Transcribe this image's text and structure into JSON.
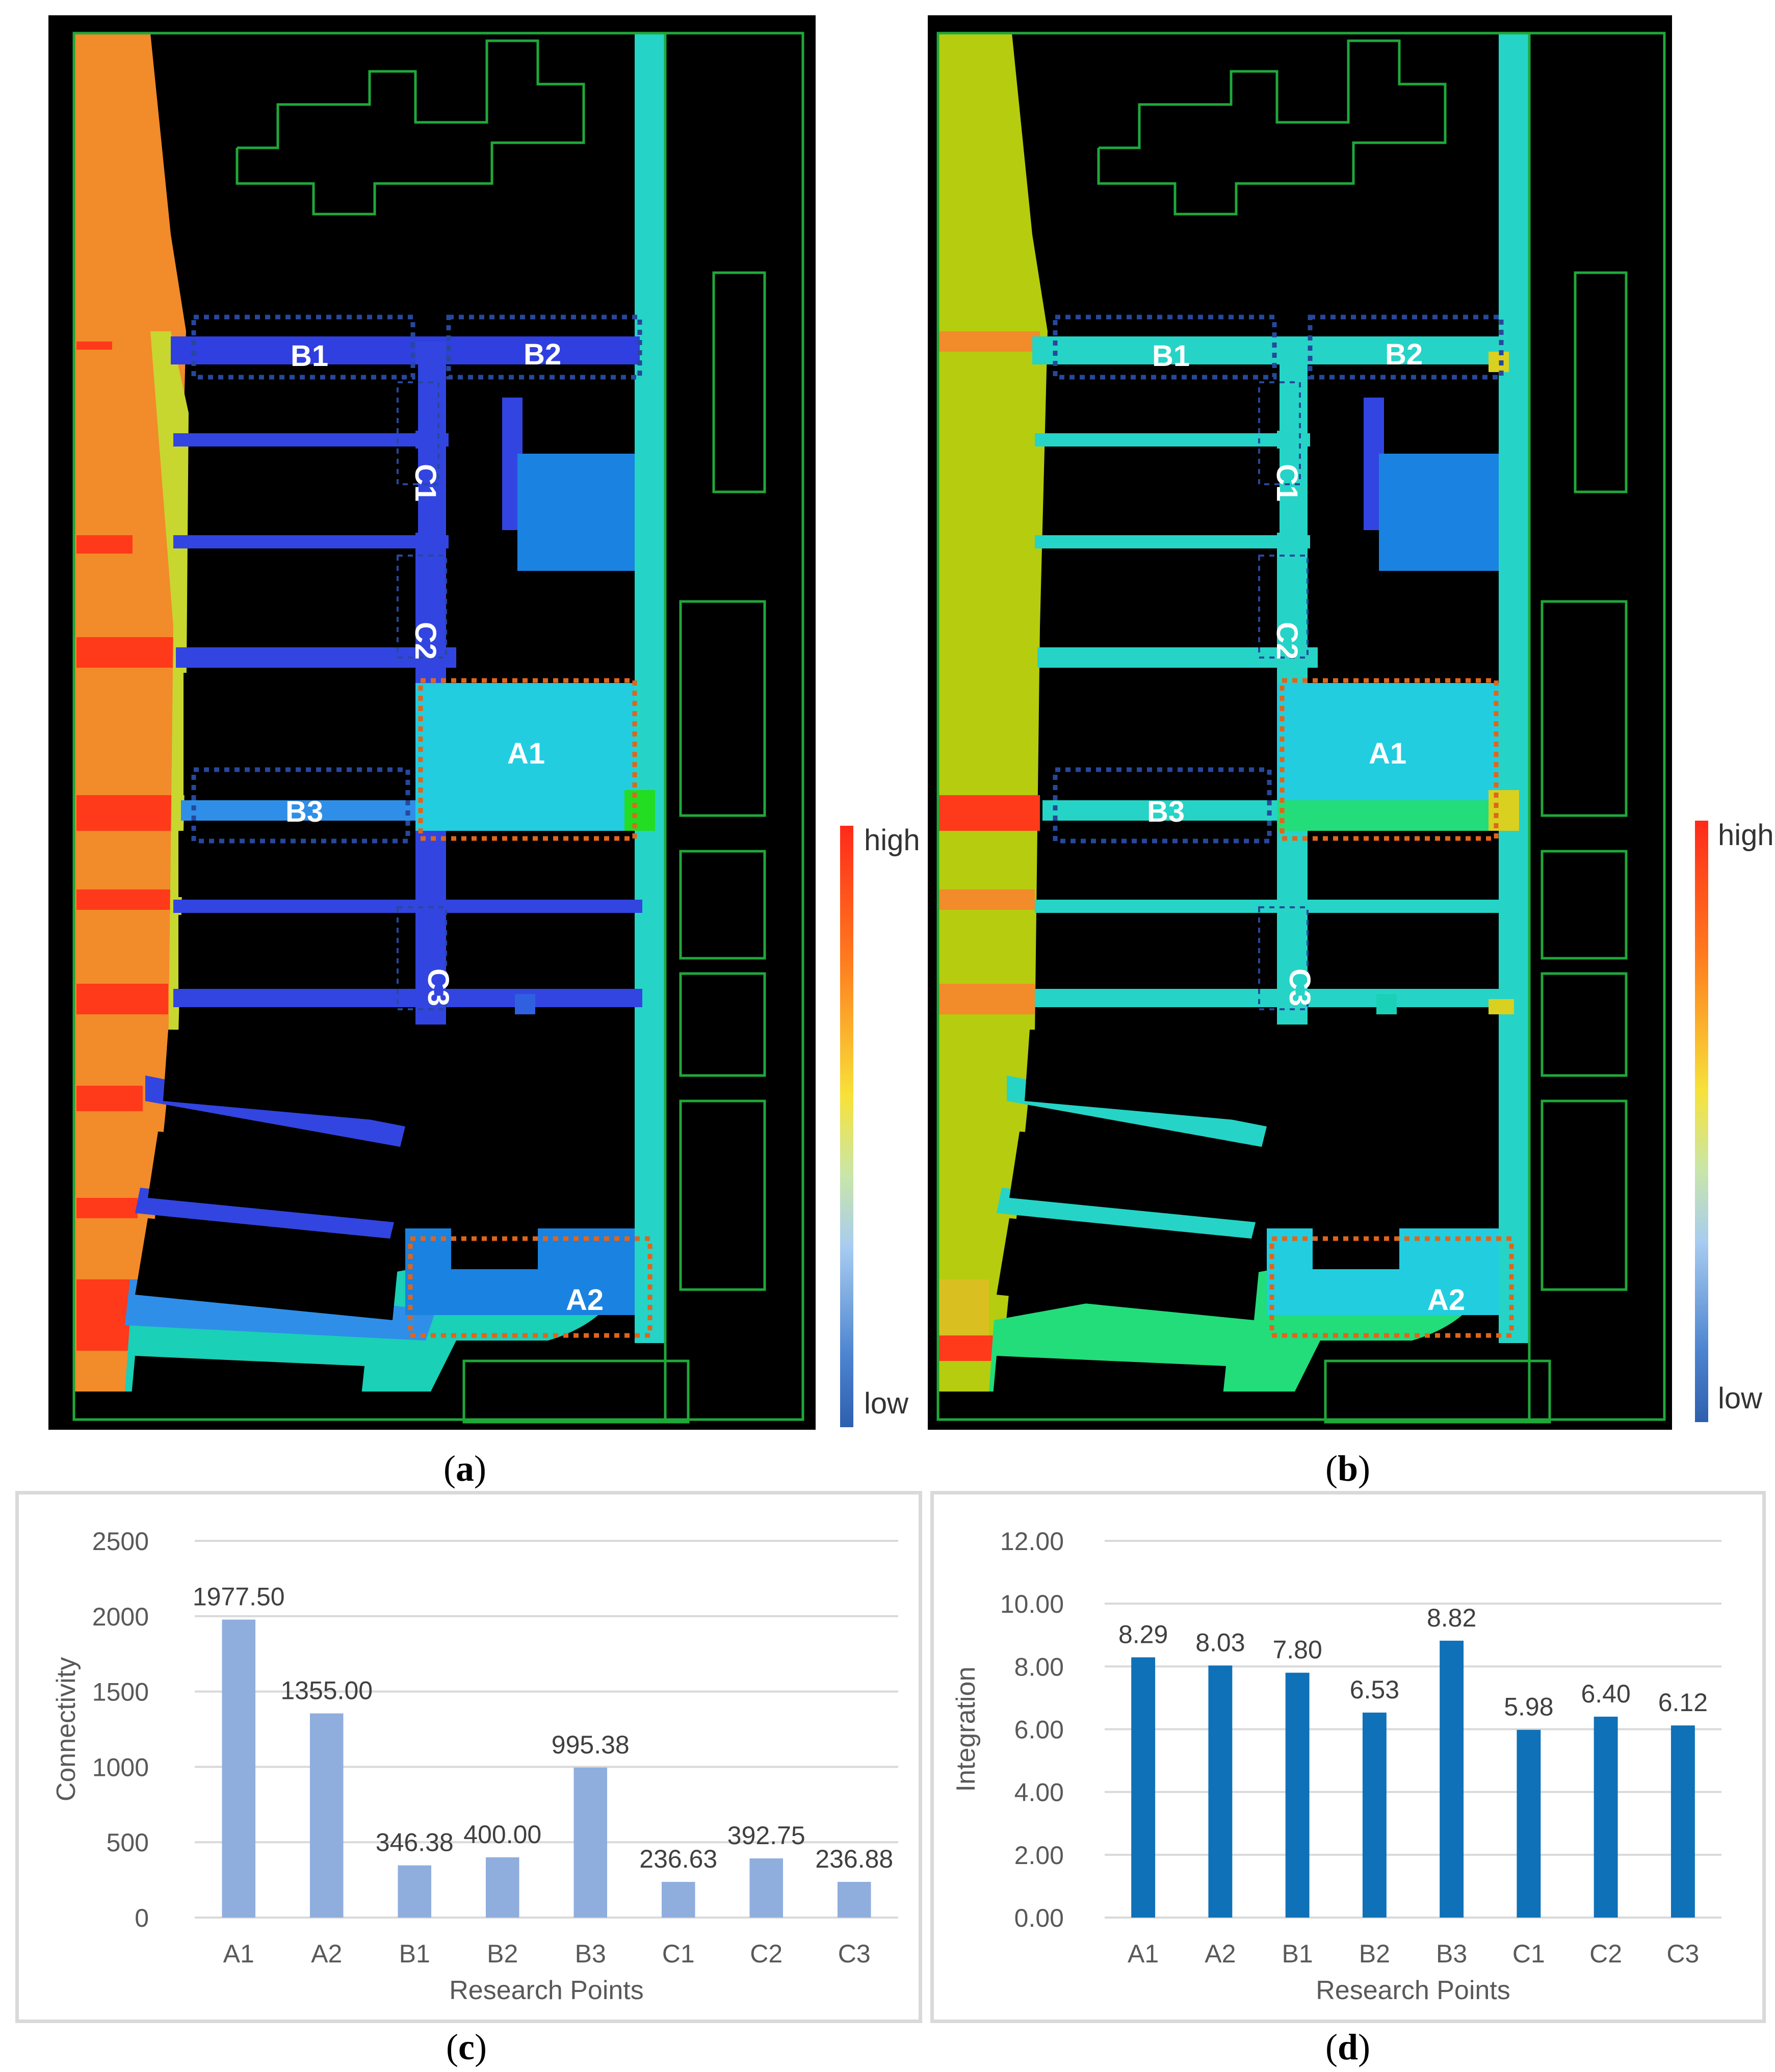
{
  "map_a": {
    "zones": {
      "A1": "A1",
      "A2": "A2",
      "B1": "B1",
      "B2": "B2",
      "B3": "B3",
      "C1": "C1",
      "C2": "C2",
      "C3": "C3"
    },
    "legend_high": "high",
    "legend_low": "low",
    "caption": "a"
  },
  "map_b": {
    "zones": {
      "A1": "A1",
      "A2": "A2",
      "B1": "B1",
      "B2": "B2",
      "B3": "B3",
      "C1": "C1",
      "C2": "C2",
      "C3": "C3"
    },
    "legend_high": "high",
    "legend_low": "low",
    "caption": "b"
  },
  "colors": {
    "bar_c": "#8faede",
    "bar_d": "#0f71b7",
    "gridline": "#d9d9d9",
    "axis_text": "#595959",
    "label_text": "#404040",
    "research_box_blue": "#27489c",
    "research_box_orange": "#e0651c"
  },
  "chart_data": [
    {
      "type": "bar",
      "categories": [
        "A1",
        "A2",
        "B1",
        "B2",
        "B3",
        "C1",
        "C2",
        "C3"
      ],
      "values": [
        1977.5,
        1355.0,
        346.38,
        400.0,
        995.38,
        236.63,
        392.75,
        236.88
      ],
      "value_labels": [
        "1977.50",
        "1355.00",
        "346.38",
        "400.00",
        "995.38",
        "236.63",
        "392.75",
        "236.88"
      ],
      "yticks": [
        "0",
        "500",
        "1000",
        "1500",
        "2000",
        "2500"
      ],
      "ylim": [
        0,
        2500
      ],
      "xlabel": "Research Points",
      "ylabel": "Connectivity",
      "grid": true,
      "caption": "c"
    },
    {
      "type": "bar",
      "categories": [
        "A1",
        "A2",
        "B1",
        "B2",
        "B3",
        "C1",
        "C2",
        "C3"
      ],
      "values": [
        8.29,
        8.03,
        7.8,
        6.53,
        8.82,
        5.98,
        6.4,
        6.12
      ],
      "value_labels": [
        "8.29",
        "8.03",
        "7.80",
        "6.53",
        "8.82",
        "5.98",
        "6.40",
        "6.12"
      ],
      "yticks": [
        "0.00",
        "2.00",
        "4.00",
        "6.00",
        "8.00",
        "10.00",
        "12.00"
      ],
      "ylim": [
        0,
        12
      ],
      "xlabel": "Research Points",
      "ylabel": "Integration",
      "grid": true,
      "caption": "d"
    }
  ]
}
